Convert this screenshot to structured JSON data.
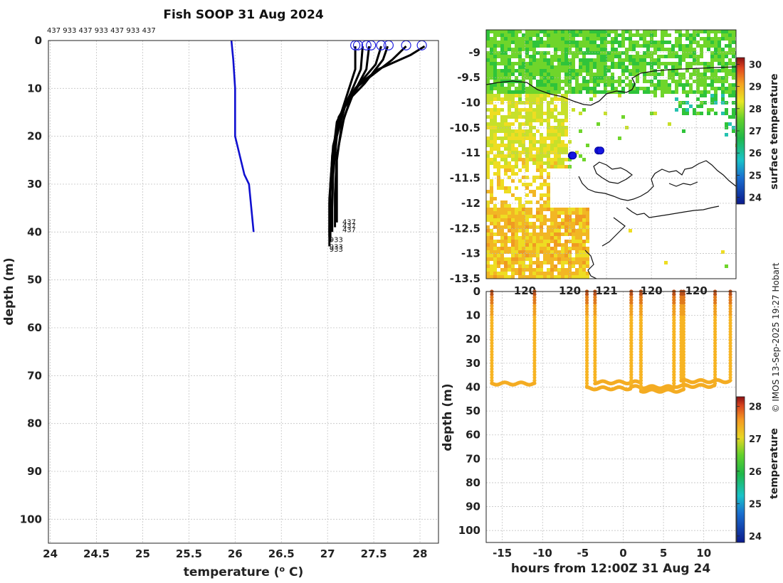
{
  "title": "Fish SOOP 31 Aug 2024",
  "profile_ids_label": "437 933 437 933 437 933 437",
  "credit": "© IMOS 13-Sep-2025 19:27 Hobart",
  "colors": {
    "profile_black": "#000000",
    "profile_blue": "#1010d0",
    "marker_blue": "#2020e0",
    "grid": "#bbbbbb"
  },
  "chart_data": [
    {
      "id": "temperature-profiles",
      "type": "line",
      "title": "Fish SOOP 31 Aug 2024",
      "xlabel": "temperature (",
      "xlabel_super": "o",
      "xlabel_suffix": " C)",
      "ylabel": "depth (m)",
      "xlim": [
        23.98,
        28.2
      ],
      "ylim": [
        105,
        0
      ],
      "xticks": [
        "24",
        "24.5",
        "25",
        "25.5",
        "26",
        "26.5",
        "27",
        "27.5",
        "28"
      ],
      "yticks": [
        "0",
        "10",
        "20",
        "30",
        "40",
        "50",
        "60",
        "70",
        "80",
        "90",
        "100"
      ],
      "grid": true,
      "series": [
        {
          "name": "blue",
          "color": "#1010d0",
          "points": [
            [
              25.96,
              0
            ],
            [
              25.98,
              4
            ],
            [
              26.0,
              10
            ],
            [
              26.0,
              20
            ],
            [
              26.1,
              28
            ],
            [
              26.15,
              30
            ],
            [
              26.2,
              40
            ]
          ]
        },
        {
          "name": "p1",
          "color": "#000000",
          "points": [
            [
              28.05,
              1.2
            ],
            [
              27.9,
              3
            ],
            [
              27.55,
              6
            ],
            [
              27.35,
              9
            ],
            [
              27.25,
              12
            ],
            [
              27.15,
              18
            ],
            [
              27.1,
              25
            ],
            [
              27.1,
              30
            ],
            [
              27.1,
              38
            ]
          ]
        },
        {
          "name": "p2",
          "color": "#000000",
          "points": [
            [
              27.85,
              1.2
            ],
            [
              27.7,
              4
            ],
            [
              27.5,
              7
            ],
            [
              27.3,
              10
            ],
            [
              27.18,
              16
            ],
            [
              27.1,
              24
            ],
            [
              27.08,
              32
            ],
            [
              27.08,
              39
            ]
          ]
        },
        {
          "name": "p3",
          "color": "#000000",
          "points": [
            [
              27.65,
              1.2
            ],
            [
              27.6,
              4
            ],
            [
              27.4,
              9
            ],
            [
              27.2,
              13
            ],
            [
              27.1,
              20
            ],
            [
              27.06,
              28
            ],
            [
              27.05,
              35
            ],
            [
              27.05,
              40
            ]
          ]
        },
        {
          "name": "p4",
          "color": "#000000",
          "points": [
            [
              27.58,
              1.2
            ],
            [
              27.52,
              5
            ],
            [
              27.3,
              10
            ],
            [
              27.15,
              15
            ],
            [
              27.06,
              22
            ],
            [
              27.03,
              30
            ],
            [
              27.02,
              40
            ]
          ]
        },
        {
          "name": "p5",
          "color": "#000000",
          "points": [
            [
              27.45,
              1.2
            ],
            [
              27.42,
              6
            ],
            [
              27.28,
              11
            ],
            [
              27.12,
              16
            ],
            [
              27.05,
              24
            ],
            [
              27.03,
              32
            ],
            [
              27.03,
              42
            ]
          ]
        },
        {
          "name": "p6",
          "color": "#000000",
          "points": [
            [
              27.38,
              1.2
            ],
            [
              27.36,
              6
            ],
            [
              27.25,
              11
            ],
            [
              27.1,
              17
            ],
            [
              27.05,
              25
            ],
            [
              27.02,
              33
            ],
            [
              27.02,
              43
            ]
          ]
        },
        {
          "name": "p7",
          "color": "#000000",
          "points": [
            [
              27.3,
              1.2
            ],
            [
              27.3,
              6
            ],
            [
              27.2,
              12
            ],
            [
              27.1,
              18
            ],
            [
              27.05,
              26
            ],
            [
              27.02,
              34
            ],
            [
              27.02,
              41
            ]
          ]
        }
      ],
      "surface_markers": [
        [
          27.3,
          1
        ],
        [
          27.33,
          1
        ],
        [
          27.42,
          1
        ],
        [
          27.47,
          1
        ],
        [
          27.58,
          1
        ],
        [
          27.66,
          1
        ],
        [
          27.85,
          1
        ],
        [
          28.02,
          1
        ]
      ],
      "end_labels": [
        {
          "text": "437",
          "x": 27.16,
          "y": 37.8
        },
        {
          "text": "437",
          "x": 27.16,
          "y": 38.6
        },
        {
          "text": "437",
          "x": 27.16,
          "y": 39.4
        },
        {
          "text": "933",
          "x": 27.02,
          "y": 41.5
        },
        {
          "text": "933",
          "x": 27.02,
          "y": 43.0
        },
        {
          "text": "933",
          "x": 27.02,
          "y": 43.5
        }
      ]
    },
    {
      "id": "sst-map",
      "type": "heatmap",
      "xlim": [
        119.0,
        121.45
      ],
      "ylim": [
        -13.5,
        -8.55
      ],
      "xticks": [
        "120",
        "120",
        "121",
        "120",
        "120"
      ],
      "yticks": [
        "-9",
        "-9.5",
        "-10",
        "-10.5",
        "-11",
        "-11.5",
        "-12",
        "-12.5",
        "-13",
        "-13.5"
      ],
      "colorbar_label": "surface temperature",
      "colorbar_range": [
        23.7,
        30.3
      ],
      "colorbar_ticks": [
        "24",
        "25",
        "26",
        "27",
        "28",
        "29",
        "30"
      ],
      "vessel_positions": [
        [
          119.84,
          -11.05
        ],
        [
          119.85,
          -11.05
        ],
        [
          120.1,
          -10.95
        ],
        [
          120.12,
          -10.95
        ]
      ]
    },
    {
      "id": "depth-time-section",
      "type": "scatter",
      "xlabel": "hours from 12:00Z 31 Aug 24",
      "ylabel": "depth (m)",
      "xlim": [
        -17,
        14
      ],
      "ylim": [
        105,
        0
      ],
      "xticks": [
        "-15",
        "-10",
        "-5",
        "0",
        "5",
        "10"
      ],
      "yticks": [
        "0",
        "10",
        "20",
        "30",
        "40",
        "50",
        "60",
        "70",
        "80",
        "90",
        "100"
      ],
      "colorbar_label": "temperature",
      "colorbar_range": [
        23.8,
        28.3
      ],
      "colorbar_ticks": [
        "24",
        "25",
        "26",
        "27",
        "28"
      ],
      "tows": [
        {
          "start": -16.3,
          "end": -11,
          "bottom": 38.5
        },
        {
          "start": -4.5,
          "end": 1,
          "bottom": 40.5
        },
        {
          "start": -3.5,
          "end": 2.2,
          "bottom": 38
        },
        {
          "start": 1.0,
          "end": 6.3,
          "bottom": 40
        },
        {
          "start": 2.2,
          "end": 7.5,
          "bottom": 41.5
        },
        {
          "start": 6.3,
          "end": 11.4,
          "bottom": 39.5
        },
        {
          "start": 7.2,
          "end": 13.3,
          "bottom": 37.5
        }
      ]
    }
  ]
}
